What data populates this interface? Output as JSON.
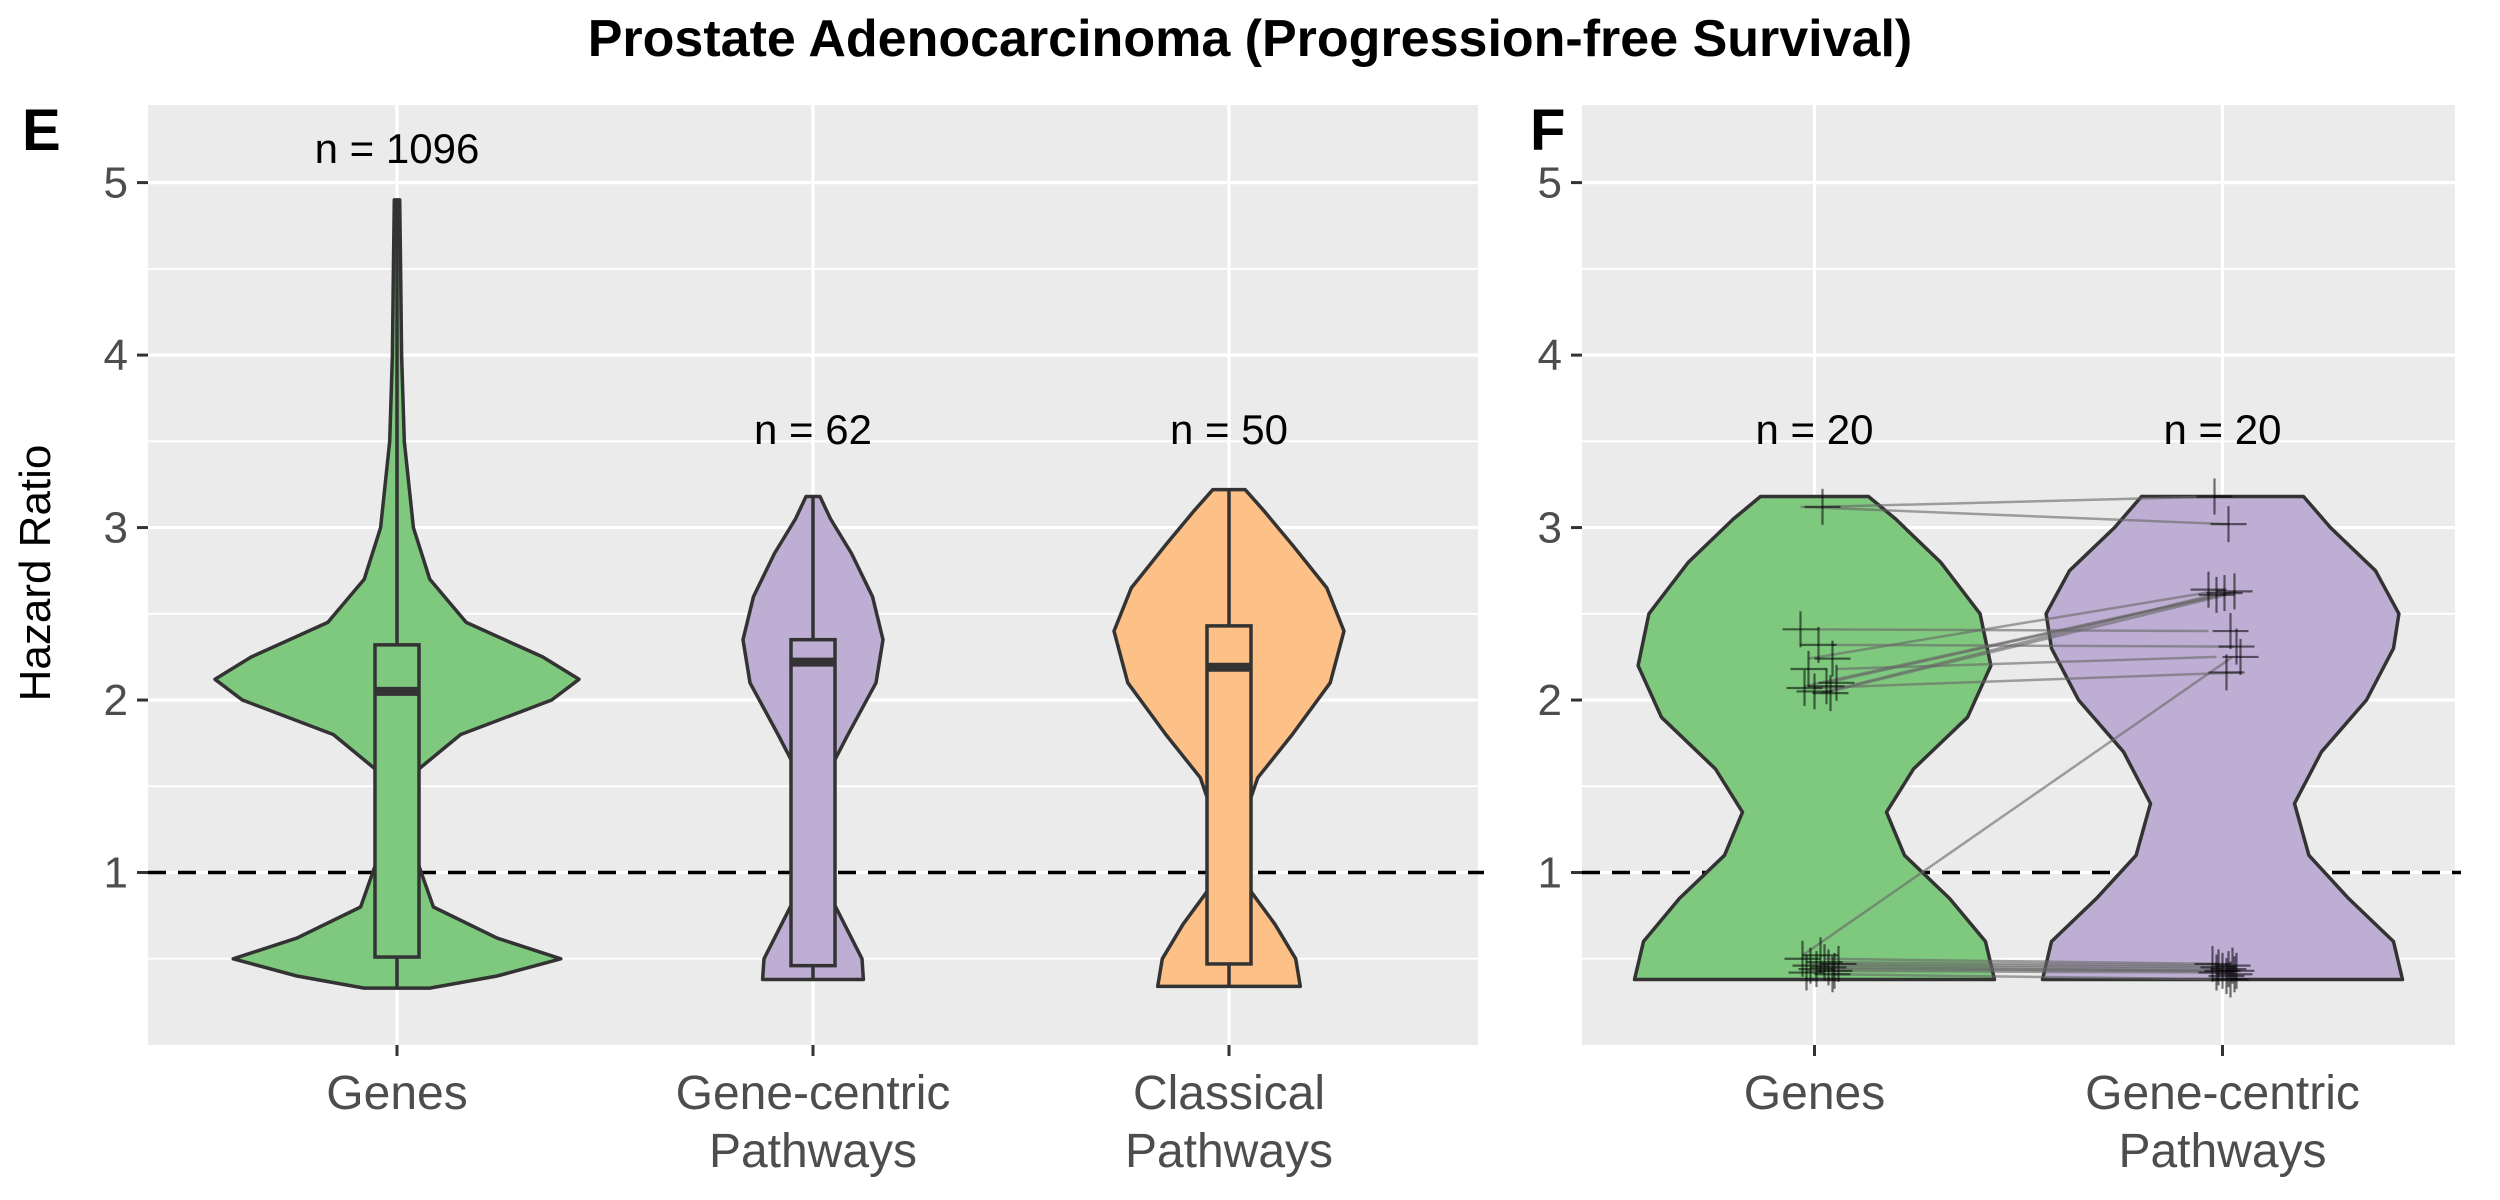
{
  "title": "Prostate Adenocarcinoma (Progression-free Survival)",
  "ylabel": "Hazard Ratio",
  "colors": {
    "genes": "#7FC97F",
    "gene_centric": "#BEAED4",
    "classical": "#FDC086",
    "panel_bg": "#EBEBEB",
    "grid": "#FFFFFF",
    "outline": "#333333",
    "pair_line": "#666666"
  },
  "chart_data": [
    {
      "type": "violin",
      "panel": "E",
      "ylabel": "Hazard Ratio",
      "ylim": [
        0.0,
        5.45
      ],
      "yticks": [
        "1",
        "2",
        "3",
        "4",
        "5"
      ],
      "reference_line": {
        "value": 1,
        "style": "dashed"
      },
      "categories": [
        "Genes",
        "Gene-centric\nPathways",
        "Classical\nPathways"
      ],
      "series": [
        {
          "name": "Genes",
          "color": "#7FC97F",
          "n_label": "n = 1096",
          "min": 0.33,
          "q1": 0.51,
          "median": 2.05,
          "q3": 2.32,
          "max": 4.9,
          "density_profile": [
            [
              0.33,
              0.18
            ],
            [
              0.4,
              0.55
            ],
            [
              0.5,
              0.9
            ],
            [
              0.62,
              0.55
            ],
            [
              0.8,
              0.2
            ],
            [
              1.1,
              0.1
            ],
            [
              1.4,
              0.09
            ],
            [
              1.6,
              0.12
            ],
            [
              1.8,
              0.35
            ],
            [
              2.0,
              0.85
            ],
            [
              2.12,
              1.0
            ],
            [
              2.25,
              0.8
            ],
            [
              2.45,
              0.38
            ],
            [
              2.7,
              0.18
            ],
            [
              3.0,
              0.09
            ],
            [
              3.5,
              0.04
            ],
            [
              4.0,
              0.025
            ],
            [
              4.5,
              0.02
            ],
            [
              4.9,
              0.015
            ]
          ]
        },
        {
          "name": "Gene-centric Pathways",
          "color": "#BEAED4",
          "n_label": "n = 62",
          "min": 0.38,
          "q1": 0.46,
          "median": 2.22,
          "q3": 2.35,
          "max": 3.18,
          "density_profile": [
            [
              0.38,
              0.72
            ],
            [
              0.5,
              0.7
            ],
            [
              0.7,
              0.45
            ],
            [
              0.9,
              0.2
            ],
            [
              1.05,
              0.1
            ],
            [
              1.3,
              0.08
            ],
            [
              1.55,
              0.18
            ],
            [
              1.8,
              0.5
            ],
            [
              2.1,
              0.9
            ],
            [
              2.35,
              1.0
            ],
            [
              2.6,
              0.85
            ],
            [
              2.85,
              0.55
            ],
            [
              3.05,
              0.25
            ],
            [
              3.18,
              0.1
            ]
          ]
        },
        {
          "name": "Classical Pathways",
          "color": "#FDC086",
          "n_label": "n = 50",
          "min": 0.34,
          "q1": 0.47,
          "median": 2.19,
          "q3": 2.43,
          "max": 3.22,
          "density_profile": [
            [
              0.34,
              0.62
            ],
            [
              0.5,
              0.58
            ],
            [
              0.7,
              0.4
            ],
            [
              0.9,
              0.18
            ],
            [
              1.1,
              0.1
            ],
            [
              1.3,
              0.12
            ],
            [
              1.55,
              0.25
            ],
            [
              1.8,
              0.55
            ],
            [
              2.1,
              0.88
            ],
            [
              2.4,
              1.0
            ],
            [
              2.65,
              0.85
            ],
            [
              2.9,
              0.55
            ],
            [
              3.1,
              0.3
            ],
            [
              3.22,
              0.14
            ]
          ]
        }
      ]
    },
    {
      "type": "violin",
      "panel": "F",
      "ylim": [
        0.0,
        5.45
      ],
      "yticks": [
        "1",
        "2",
        "3",
        "4",
        "5"
      ],
      "reference_line": {
        "value": 1,
        "style": "dashed"
      },
      "categories": [
        "Genes",
        "Gene-centric\nPathways"
      ],
      "series": [
        {
          "name": "Genes",
          "color": "#7FC97F",
          "n_label": "n = 20",
          "density_profile": [
            [
              0.38,
              1.0
            ],
            [
              0.6,
              0.95
            ],
            [
              0.85,
              0.75
            ],
            [
              1.1,
              0.5
            ],
            [
              1.35,
              0.4
            ],
            [
              1.6,
              0.55
            ],
            [
              1.9,
              0.85
            ],
            [
              2.2,
              0.98
            ],
            [
              2.5,
              0.92
            ],
            [
              2.8,
              0.7
            ],
            [
              3.05,
              0.45
            ],
            [
              3.18,
              0.3
            ]
          ],
          "points": [
            3.12,
            2.41,
            2.32,
            2.24,
            2.18,
            2.1,
            2.08,
            2.07,
            2.05,
            2.04,
            0.52,
            0.5,
            0.48,
            0.47,
            0.46,
            0.45,
            0.44,
            0.43,
            0.42,
            0.41
          ]
        },
        {
          "name": "Gene-centric Pathways",
          "color": "#BEAED4",
          "n_label": "n = 20",
          "density_profile": [
            [
              0.38,
              1.0
            ],
            [
              0.6,
              0.95
            ],
            [
              0.85,
              0.7
            ],
            [
              1.1,
              0.48
            ],
            [
              1.4,
              0.4
            ],
            [
              1.7,
              0.55
            ],
            [
              2.0,
              0.8
            ],
            [
              2.3,
              0.95
            ],
            [
              2.5,
              0.98
            ],
            [
              2.75,
              0.85
            ],
            [
              3.0,
              0.6
            ],
            [
              3.18,
              0.45
            ]
          ],
          "points": [
            3.18,
            3.02,
            2.64,
            2.63,
            2.62,
            2.61,
            2.4,
            2.31,
            2.25,
            2.16,
            0.47,
            0.46,
            0.45,
            0.44,
            0.43,
            0.43,
            0.42,
            0.41,
            0.4,
            0.38
          ]
        }
      ],
      "pairs": [
        [
          3.12,
          3.18
        ],
        [
          3.12,
          3.02
        ],
        [
          2.41,
          2.4
        ],
        [
          2.32,
          2.31
        ],
        [
          2.24,
          2.64
        ],
        [
          2.18,
          2.25
        ],
        [
          2.1,
          2.62
        ],
        [
          2.08,
          2.63
        ],
        [
          2.07,
          2.16
        ],
        [
          2.05,
          2.61
        ],
        [
          2.04,
          2.61
        ],
        [
          0.52,
          2.25
        ],
        [
          0.5,
          0.47
        ],
        [
          0.48,
          0.46
        ],
        [
          0.47,
          0.45
        ],
        [
          0.46,
          0.44
        ],
        [
          0.45,
          0.43
        ],
        [
          0.44,
          0.43
        ],
        [
          0.43,
          0.42
        ],
        [
          0.41,
          0.38
        ]
      ]
    }
  ]
}
